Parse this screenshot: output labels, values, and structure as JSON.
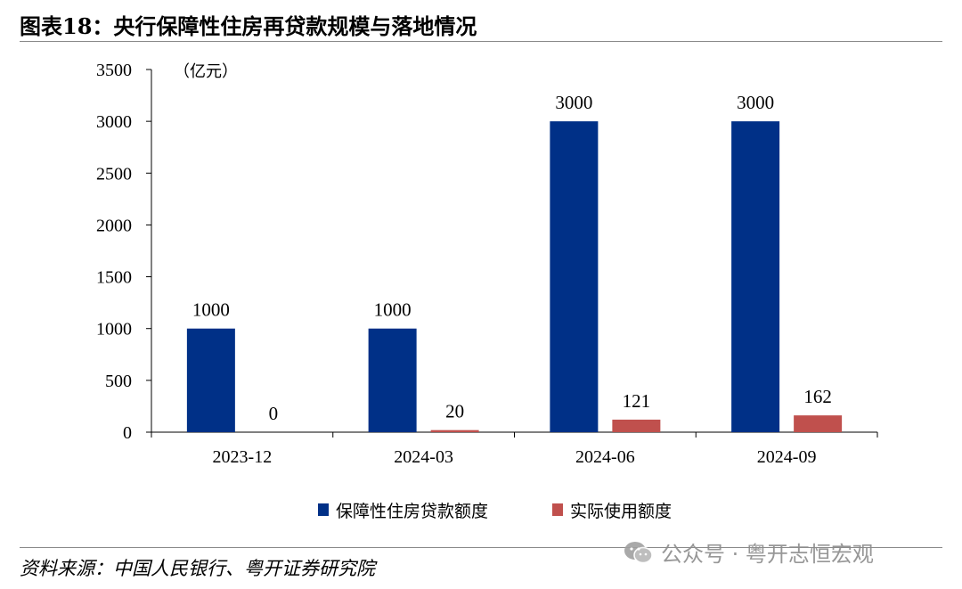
{
  "title": "图表18：央行保障性住房再贷款规模与落地情况",
  "source": "资料来源：中国人民银行、粤开证券研究院",
  "watermark": {
    "text": "公众号 · 粤开志恒宏观",
    "icon": "wechat-icon"
  },
  "chart_data": {
    "type": "bar",
    "unit_label": "（亿元）",
    "categories": [
      "2023-12",
      "2024-03",
      "2024-06",
      "2024-09"
    ],
    "series": [
      {
        "name": "保障性住房贷款额度",
        "color": "#003087",
        "values": [
          1000,
          1000,
          3000,
          3000
        ]
      },
      {
        "name": "实际使用额度",
        "color": "#c0504d",
        "values": [
          0,
          20,
          121,
          162
        ]
      }
    ],
    "ylim": [
      0,
      3500
    ],
    "yticks": [
      0,
      500,
      1000,
      1500,
      2000,
      2500,
      3000,
      3500
    ],
    "grid": false,
    "legend_position": "bottom"
  }
}
